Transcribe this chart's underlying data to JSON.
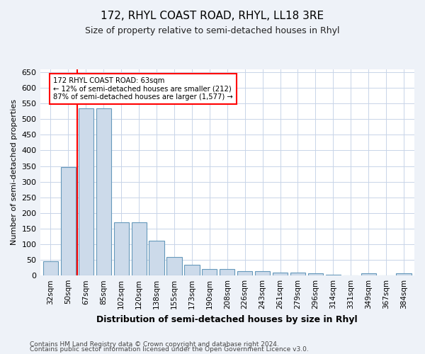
{
  "title": "172, RHYL COAST ROAD, RHYL, LL18 3RE",
  "subtitle": "Size of property relative to semi-detached houses in Rhyl",
  "xlabel": "Distribution of semi-detached houses by size in Rhyl",
  "ylabel": "Number of semi-detached properties",
  "categories": [
    "32sqm",
    "50sqm",
    "67sqm",
    "85sqm",
    "102sqm",
    "120sqm",
    "138sqm",
    "155sqm",
    "173sqm",
    "190sqm",
    "208sqm",
    "226sqm",
    "243sqm",
    "261sqm",
    "279sqm",
    "296sqm",
    "314sqm",
    "331sqm",
    "349sqm",
    "367sqm",
    "384sqm"
  ],
  "values": [
    46,
    346,
    535,
    535,
    170,
    170,
    112,
    60,
    35,
    20,
    20,
    15,
    15,
    10,
    10,
    8,
    2,
    0,
    8,
    0,
    8
  ],
  "bar_color": "#ccdaea",
  "bar_edge_color": "#6699bb",
  "red_line_x": 1.5,
  "annotation_text": "172 RHYL COAST ROAD: 63sqm\n← 12% of semi-detached houses are smaller (212)\n87% of semi-detached houses are larger (1,577) →",
  "ylim": [
    0,
    660
  ],
  "yticks": [
    0,
    50,
    100,
    150,
    200,
    250,
    300,
    350,
    400,
    450,
    500,
    550,
    600,
    650
  ],
  "footer1": "Contains HM Land Registry data © Crown copyright and database right 2024.",
  "footer2": "Contains public sector information licensed under the Open Government Licence v3.0.",
  "bg_color": "#eef2f8",
  "plot_bg_color": "#ffffff",
  "grid_color": "#c8d4e8"
}
